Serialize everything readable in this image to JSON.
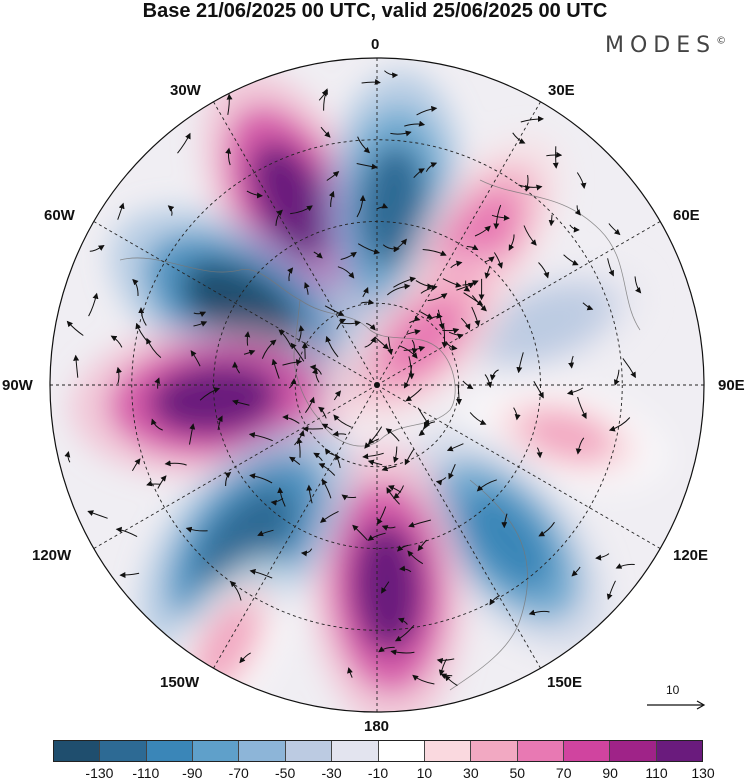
{
  "title": "Base 21/06/2025 00 UTC, valid 25/06/2025 00 UTC",
  "logo": "MODES",
  "logo_mark": "©",
  "longitude_labels": {
    "n0": "0",
    "n30e": "30E",
    "n60e": "60E",
    "n90e": "90E",
    "n120e": "120E",
    "n150e": "150E",
    "n180": "180",
    "n150w": "150W",
    "n120w": "120W",
    "n90w": "90W",
    "n60w": "60W",
    "n30w": "30W"
  },
  "reference_vector": {
    "label": "10"
  },
  "colorbar": {
    "colors": [
      "#1f4e6e",
      "#2d6a94",
      "#3a86b8",
      "#5fa0ca",
      "#8db5d8",
      "#bccbe2",
      "#e3e4ef",
      "#ffffff",
      "#fad9df",
      "#f2a9c2",
      "#e879b3",
      "#d0449f",
      "#9f2388",
      "#6a1b7d"
    ],
    "tick_labels": [
      "-130",
      "-110",
      "-90",
      "-70",
      "-50",
      "-30",
      "-10",
      "10",
      "30",
      "50",
      "70",
      "90",
      "110",
      "130"
    ]
  },
  "map": {
    "projection": "north-polar-stereographic",
    "anomaly_cells": [
      {
        "lon": -25,
        "r": 0.62,
        "value": 120
      },
      {
        "lon": 5,
        "r": 0.55,
        "value": -110
      },
      {
        "lon": 35,
        "r": 0.55,
        "value": 70
      },
      {
        "lon": -60,
        "r": 0.48,
        "value": -130
      },
      {
        "lon": -95,
        "r": 0.5,
        "value": 130
      },
      {
        "lon": 105,
        "r": 0.6,
        "value": 40
      },
      {
        "lon": 140,
        "r": 0.62,
        "value": -100
      },
      {
        "lon": 177,
        "r": 0.62,
        "value": 130
      },
      {
        "lon": -140,
        "r": 0.62,
        "value": -120
      },
      {
        "lon": 70,
        "r": 0.55,
        "value": -40
      },
      {
        "lon": 45,
        "r": 0.2,
        "value": 60
      },
      {
        "lon": -150,
        "r": 0.92,
        "value": 40
      }
    ]
  }
}
